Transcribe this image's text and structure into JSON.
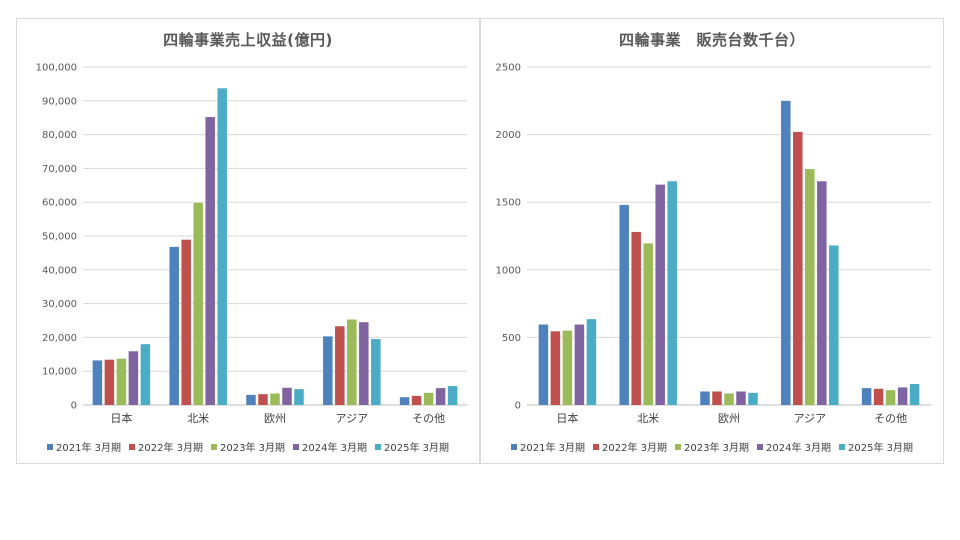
{
  "colors": {
    "s2021": "#4f81bd",
    "s2022": "#c0504d",
    "s2023": "#9bbb59",
    "s2024": "#8064a2",
    "s2025": "#4bacc6",
    "grid": "#d9d9d9",
    "axis": "#bfbfbf"
  },
  "chart_data": [
    {
      "type": "bar",
      "title": "四輪事業売上収益(億円)",
      "categories": [
        "日本",
        "北米",
        "欧州",
        "アジア",
        "その他"
      ],
      "ylim": [
        0,
        100000
      ],
      "yticks": [
        "0",
        "10,000",
        "20,000",
        "30,000",
        "40,000",
        "50,000",
        "60,000",
        "70,000",
        "80,000",
        "90,000",
        "100,000"
      ],
      "grid": true,
      "legend": "bottom",
      "series": [
        {
          "name": "2021年 3月期",
          "values": [
            13200,
            46800,
            3000,
            20300,
            2300
          ]
        },
        {
          "name": "2022年 3月期",
          "values": [
            13400,
            48900,
            3200,
            23300,
            2700
          ]
        },
        {
          "name": "2023年 3月期",
          "values": [
            13700,
            59800,
            3400,
            25300,
            3600
          ]
        },
        {
          "name": "2024年 3月期",
          "values": [
            15900,
            85200,
            5100,
            24500,
            5000
          ]
        },
        {
          "name": "2025年 3月期",
          "values": [
            18000,
            93700,
            4700,
            19500,
            5600
          ]
        }
      ]
    },
    {
      "type": "bar",
      "title": "四輪事業　販売台数千台）",
      "categories": [
        "日本",
        "北米",
        "欧州",
        "アジア",
        "その他"
      ],
      "ylim": [
        0,
        2500
      ],
      "yticks": [
        "0",
        "500",
        "1000",
        "1500",
        "2000",
        "2500"
      ],
      "grid": true,
      "legend": "bottom",
      "series": [
        {
          "name": "2021年 3月期",
          "values": [
            595,
            1480,
            100,
            2250,
            125
          ]
        },
        {
          "name": "2022年 3月期",
          "values": [
            545,
            1280,
            100,
            2020,
            120
          ]
        },
        {
          "name": "2023年 3月期",
          "values": [
            550,
            1195,
            85,
            1745,
            110
          ]
        },
        {
          "name": "2024年 3月期",
          "values": [
            595,
            1630,
            100,
            1655,
            130
          ]
        },
        {
          "name": "2025年 3月期",
          "values": [
            635,
            1655,
            90,
            1180,
            155
          ]
        }
      ]
    }
  ]
}
